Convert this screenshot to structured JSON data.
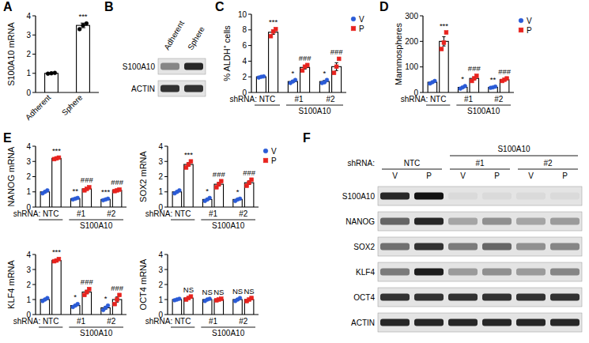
{
  "panel_labels": [
    "A",
    "B",
    "C",
    "D",
    "E",
    "F"
  ],
  "chart_data": [
    {
      "type": "bar",
      "y_label": "S100A10 mRNA",
      "categories": [
        "Adherent",
        "Sphere"
      ],
      "values": [
        1.0,
        3.5
      ],
      "errors": [
        0.02,
        0.12
      ],
      "points": [
        [
          0.98,
          1.0,
          1.02
        ],
        [
          3.3,
          3.5,
          3.6
        ]
      ],
      "significance": [
        null,
        "***"
      ],
      "color": "#000000",
      "marker": "circle",
      "ylim": [
        0,
        4
      ],
      "yticks": [
        0,
        1,
        2,
        3,
        4
      ]
    },
    {
      "type": "bar",
      "y_label": "% ALDH⁺ cells",
      "x_prefix": "shRNA:",
      "x_group_label": "S100A10",
      "categories": [
        "NTC",
        "#1",
        "#2"
      ],
      "series": [
        {
          "name": "V",
          "color": "#2a5bd7",
          "marker": "circle",
          "values": [
            2.0,
            1.4,
            1.4
          ],
          "errors": [
            0.05,
            0.12,
            0.13
          ],
          "points": [
            [
              1.9,
              2.0,
              2.05
            ],
            [
              1.2,
              1.4,
              1.6
            ],
            [
              1.2,
              1.3,
              1.6
            ]
          ],
          "significance": [
            null,
            "*",
            "*"
          ]
        },
        {
          "name": "P",
          "color": "#e8231e",
          "marker": "square",
          "values": [
            7.7,
            3.2,
            3.3
          ],
          "errors": [
            0.26,
            0.2,
            0.5
          ],
          "points": [
            [
              7.2,
              7.8,
              8.1
            ],
            [
              2.8,
              3.3,
              3.5
            ],
            [
              2.5,
              3.3,
              4.3
            ]
          ],
          "significance": [
            "***",
            "###",
            "###"
          ]
        }
      ],
      "legend": "top-right",
      "ylim": [
        0,
        10
      ],
      "yticks": [
        0,
        2,
        4,
        6,
        8,
        10
      ]
    },
    {
      "type": "bar",
      "y_label": "Mammospheres",
      "x_prefix": "shRNA:",
      "x_group_label": "S100A10",
      "categories": [
        "NTC",
        "#1",
        "#2"
      ],
      "series": [
        {
          "name": "V",
          "color": "#2a5bd7",
          "marker": "circle",
          "values": [
            40,
            20,
            20
          ],
          "errors": [
            3,
            3,
            2
          ],
          "points": [
            [
              35,
              40,
              45
            ],
            [
              15,
              20,
              25
            ],
            [
              18,
              20,
              23
            ]
          ],
          "significance": [
            null,
            "*",
            "**"
          ]
        },
        {
          "name": "P",
          "color": "#e8231e",
          "marker": "square",
          "values": [
            200,
            55,
            50
          ],
          "errors": [
            18,
            6,
            4
          ],
          "points": [
            [
              170,
              195,
              235
            ],
            [
              45,
              55,
              65
            ],
            [
              45,
              50,
              55
            ]
          ],
          "significance": [
            "***",
            "###",
            "###"
          ]
        }
      ],
      "legend": "top-right",
      "ylim": [
        0,
        300
      ],
      "yticks": [
        0,
        100,
        200,
        300
      ]
    },
    {
      "type": "bar",
      "y_label": "NANOG mRNA",
      "x_prefix": "shRNA:",
      "x_group_label": "S100A10",
      "categories": [
        "NTC",
        "#1",
        "#2"
      ],
      "series": [
        {
          "name": "V",
          "color": "#2a5bd7",
          "marker": "circle",
          "values": [
            1.0,
            0.55,
            0.5
          ],
          "errors": [
            0.05,
            0.03,
            0.03
          ],
          "points": [
            [
              0.9,
              1.0,
              1.1
            ],
            [
              0.5,
              0.55,
              0.6
            ],
            [
              0.45,
              0.5,
              0.55
            ]
          ],
          "significance": [
            null,
            "**",
            "***"
          ]
        },
        {
          "name": "P",
          "color": "#e8231e",
          "marker": "square",
          "values": [
            3.2,
            1.2,
            1.1
          ],
          "errors": [
            0.03,
            0.06,
            0.03
          ],
          "points": [
            [
              3.15,
              3.2,
              3.25
            ],
            [
              1.1,
              1.2,
              1.3
            ],
            [
              1.05,
              1.1,
              1.15
            ]
          ],
          "significance": [
            "***",
            "###",
            "###"
          ]
        }
      ],
      "ylim": [
        0,
        4
      ],
      "yticks": [
        0,
        1,
        2,
        3,
        4
      ]
    },
    {
      "type": "bar",
      "y_label": "SOX2 mRNA",
      "x_prefix": "shRNA:",
      "x_group_label": "S100A10",
      "categories": [
        "NTC",
        "#1",
        "#2"
      ],
      "series": [
        {
          "name": "V",
          "color": "#2a5bd7",
          "marker": "circle",
          "values": [
            1.0,
            0.5,
            0.5
          ],
          "errors": [
            0.06,
            0.06,
            0.04
          ],
          "points": [
            [
              0.9,
              1.0,
              1.1
            ],
            [
              0.4,
              0.5,
              0.6
            ],
            [
              0.4,
              0.5,
              0.55
            ]
          ],
          "significance": [
            null,
            "*",
            "*"
          ]
        },
        {
          "name": "P",
          "color": "#e8231e",
          "marker": "square",
          "values": [
            2.8,
            1.5,
            1.6
          ],
          "errors": [
            0.12,
            0.12,
            0.12
          ],
          "points": [
            [
              2.6,
              2.8,
              3.0
            ],
            [
              1.3,
              1.5,
              1.7
            ],
            [
              1.4,
              1.6,
              1.8
            ]
          ],
          "significance": [
            "***",
            "###",
            "###"
          ]
        }
      ],
      "legend": "top-right",
      "ylim": [
        0,
        4
      ],
      "yticks": [
        0,
        1,
        2,
        3,
        4
      ]
    },
    {
      "type": "bar",
      "y_label": "KLF4 mRNA",
      "x_prefix": "shRNA:",
      "x_group_label": "S100A10",
      "categories": [
        "NTC",
        "#1",
        "#2"
      ],
      "series": [
        {
          "name": "V",
          "color": "#2a5bd7",
          "marker": "circle",
          "values": [
            1.0,
            0.6,
            0.45
          ],
          "errors": [
            0.06,
            0.06,
            0.09
          ],
          "points": [
            [
              0.9,
              1.0,
              1.1
            ],
            [
              0.5,
              0.6,
              0.7
            ],
            [
              0.3,
              0.45,
              0.6
            ]
          ],
          "significance": [
            null,
            "*",
            "*"
          ]
        },
        {
          "name": "P",
          "color": "#e8231e",
          "marker": "square",
          "values": [
            3.6,
            1.5,
            1.0
          ],
          "errors": [
            0.04,
            0.12,
            0.17
          ],
          "points": [
            [
              3.55,
              3.6,
              3.7
            ],
            [
              1.3,
              1.5,
              1.7
            ],
            [
              0.7,
              1.0,
              1.3
            ]
          ],
          "significance": [
            "***",
            "###",
            "###"
          ]
        }
      ],
      "ylim": [
        0,
        4
      ],
      "yticks": [
        0,
        1,
        2,
        3,
        4
      ]
    },
    {
      "type": "bar",
      "y_label": "OCT4 mRNA",
      "x_prefix": "shRNA:",
      "x_group_label": "S100A10",
      "categories": [
        "NTC",
        "#1",
        "#2"
      ],
      "series": [
        {
          "name": "V",
          "color": "#2a5bd7",
          "marker": "circle",
          "values": [
            1.0,
            1.0,
            1.0
          ],
          "errors": [
            0.03,
            0.04,
            0.06
          ],
          "points": [
            [
              0.95,
              1.0,
              1.05
            ],
            [
              0.9,
              1.0,
              1.05
            ],
            [
              0.9,
              1.0,
              1.1
            ]
          ],
          "significance": [
            null,
            "NS",
            "NS"
          ]
        },
        {
          "name": "P",
          "color": "#e8231e",
          "marker": "square",
          "values": [
            1.1,
            1.0,
            1.0
          ],
          "errors": [
            0.06,
            0.03,
            0.06
          ],
          "points": [
            [
              1.0,
              1.1,
              1.2
            ],
            [
              0.95,
              1.0,
              1.05
            ],
            [
              0.9,
              1.0,
              1.1
            ]
          ],
          "significance": [
            "NS",
            "NS",
            "NS"
          ]
        }
      ],
      "ylim": [
        0,
        4
      ],
      "yticks": [
        0,
        1,
        2,
        3,
        4
      ]
    }
  ],
  "blots": [
    {
      "lanes": [
        "Adherent",
        "Sphere"
      ],
      "rows": [
        {
          "label": "S100A10",
          "intensities": [
            0.45,
            0.9
          ]
        },
        {
          "label": "ACTIN",
          "intensities": [
            0.85,
            0.85
          ]
        }
      ]
    },
    {
      "prefix": "shRNA:",
      "group_label": "S100A10",
      "groups": [
        "NTC",
        "#1",
        "#2"
      ],
      "lanes": [
        "V",
        "P",
        "V",
        "P",
        "V",
        "P"
      ],
      "rows": [
        {
          "label": "S100A10",
          "intensities": [
            0.9,
            1.0,
            0.05,
            0.05,
            0.05,
            0.05
          ]
        },
        {
          "label": "NANOG",
          "intensities": [
            0.6,
            0.9,
            0.3,
            0.4,
            0.3,
            0.35
          ]
        },
        {
          "label": "SOX2",
          "intensities": [
            0.55,
            0.85,
            0.5,
            0.6,
            0.4,
            0.45
          ]
        },
        {
          "label": "KLF4",
          "intensities": [
            0.5,
            0.95,
            0.35,
            0.4,
            0.35,
            0.45
          ]
        },
        {
          "label": "OCT4",
          "intensities": [
            0.85,
            0.85,
            0.85,
            0.85,
            0.85,
            0.85
          ]
        },
        {
          "label": "ACTIN",
          "intensities": [
            0.9,
            0.9,
            0.9,
            0.9,
            0.9,
            0.9
          ]
        }
      ]
    }
  ]
}
